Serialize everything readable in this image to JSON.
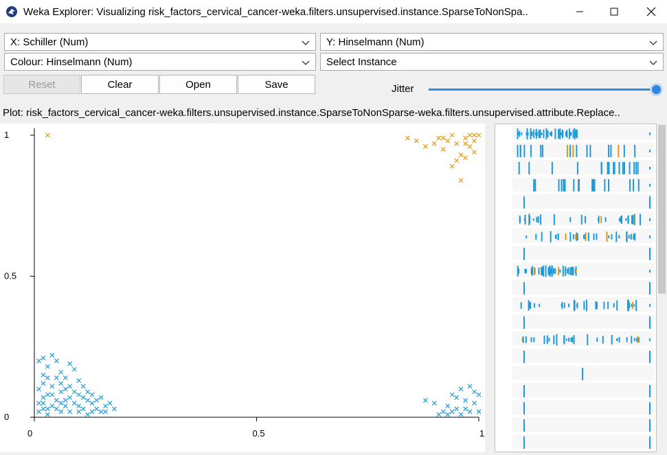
{
  "window": {
    "title": "Weka Explorer: Visualizing risk_factors_cervical_cancer-weka.filters.unsupervised.instance.SparseToNonSpa..",
    "minimize_icon": "minimize-icon",
    "maximize_icon": "maximize-icon",
    "close_icon": "close-icon"
  },
  "controls": {
    "x_axis": "X: Schiller (Num)",
    "y_axis": "Y: Hinselmann (Num)",
    "colour": "Colour: Hinselmann (Num)",
    "select_instance": "Select Instance",
    "reset_label": "Reset",
    "clear_label": "Clear",
    "open_label": "Open",
    "save_label": "Save",
    "jitter_label": "Jitter",
    "jitter_value": 1.0
  },
  "plot": {
    "title": "Plot: risk_factors_cervical_cancer-weka.filters.unsupervised.instance.SparseToNonSparse-weka.filters.unsupervised.attribute.Replace..",
    "colors": {
      "class0": "#1e9ad8",
      "class1": "#e8960c"
    }
  },
  "chart_data": {
    "type": "scatter",
    "xlabel": "",
    "ylabel": "",
    "xlim": [
      0,
      1
    ],
    "ylim": [
      0,
      1
    ],
    "x_ticks": [
      "0",
      "0.5",
      "1"
    ],
    "y_ticks": [
      "0",
      "0.5",
      "1"
    ],
    "marker": "x",
    "series": [
      {
        "color": "#1e9ad8",
        "points": [
          [
            0.01,
            0.02
          ],
          [
            0.02,
            0.05
          ],
          [
            0.03,
            0.01
          ],
          [
            0.04,
            0.08
          ],
          [
            0.05,
            0.03
          ],
          [
            0.06,
            0.12
          ],
          [
            0.07,
            0.06
          ],
          [
            0.08,
            0.02
          ],
          [
            0.09,
            0.09
          ],
          [
            0.1,
            0.04
          ],
          [
            0.11,
            0.07
          ],
          [
            0.12,
            0.01
          ],
          [
            0.13,
            0.05
          ],
          [
            0.14,
            0.03
          ],
          [
            0.15,
            0.02
          ],
          [
            0.02,
            0.15
          ],
          [
            0.03,
            0.18
          ],
          [
            0.05,
            0.2
          ],
          [
            0.06,
            0.16
          ],
          [
            0.08,
            0.19
          ],
          [
            0.04,
            0.22
          ],
          [
            0.01,
            0.1
          ],
          [
            0.02,
            0.12
          ],
          [
            0.03,
            0.08
          ],
          [
            0.07,
            0.14
          ],
          [
            0.09,
            0.17
          ],
          [
            0.1,
            0.13
          ],
          [
            0.11,
            0.11
          ],
          [
            0.12,
            0.09
          ],
          [
            0.13,
            0.08
          ],
          [
            0.14,
            0.06
          ],
          [
            0.16,
            0.04
          ],
          [
            0.18,
            0.03
          ],
          [
            0.17,
            0.05
          ],
          [
            0.01,
            0.2
          ],
          [
            0.02,
            0.21
          ],
          [
            0.05,
            0.14
          ],
          [
            0.06,
            0.09
          ],
          [
            0.08,
            0.07
          ],
          [
            0.09,
            0.05
          ],
          [
            0.1,
            0.02
          ],
          [
            0.04,
            0.04
          ],
          [
            0.03,
            0.03
          ],
          [
            0.02,
            0.07
          ],
          [
            0.07,
            0.1
          ],
          [
            0.11,
            0.03
          ],
          [
            0.12,
            0.06
          ],
          [
            0.13,
            0.02
          ],
          [
            0.06,
            0.02
          ],
          [
            0.05,
            0.06
          ],
          [
            0.01,
            0.05
          ],
          [
            0.02,
            0.03
          ],
          [
            0.04,
            0.11
          ],
          [
            0.06,
            0.05
          ],
          [
            0.08,
            0.11
          ],
          [
            0.15,
            0.07
          ],
          [
            0.16,
            0.02
          ],
          [
            0.1,
            0.08
          ],
          [
            0.03,
            0.14
          ],
          [
            0.07,
            0.04
          ],
          [
            0.88,
            0.06
          ],
          [
            0.9,
            0.05
          ],
          [
            0.92,
            0.02
          ],
          [
            0.93,
            0.04
          ],
          [
            0.94,
            0.08
          ],
          [
            0.95,
            0.03
          ],
          [
            0.96,
            0.1
          ],
          [
            0.97,
            0.06
          ],
          [
            0.98,
            0.02
          ],
          [
            0.99,
            0.09
          ],
          [
            0.95,
            0.07
          ],
          [
            0.96,
            0.01
          ],
          [
            0.97,
            0.03
          ],
          [
            0.98,
            0.11
          ],
          [
            0.99,
            0.05
          ],
          [
            1.0,
            0.08
          ],
          [
            0.91,
            0.01
          ],
          [
            0.94,
            0.02
          ],
          [
            0.93,
            0.01
          ],
          [
            1.0,
            0.02
          ]
        ]
      },
      {
        "color": "#e8960c",
        "points": [
          [
            0.03,
            1.0
          ],
          [
            0.84,
            0.99
          ],
          [
            0.86,
            0.98
          ],
          [
            0.88,
            0.96
          ],
          [
            0.9,
            0.97
          ],
          [
            0.91,
            0.99
          ],
          [
            0.92,
            0.95
          ],
          [
            0.93,
            0.98
          ],
          [
            0.94,
            1.0
          ],
          [
            0.95,
            0.97
          ],
          [
            0.96,
            0.93
          ],
          [
            0.97,
            0.99
          ],
          [
            0.98,
            0.96
          ],
          [
            0.99,
            0.98
          ],
          [
            1.0,
            1.0
          ],
          [
            0.95,
            0.91
          ],
          [
            0.97,
            0.92
          ],
          [
            0.99,
            0.94
          ],
          [
            0.96,
            0.84
          ],
          [
            0.94,
            0.89
          ],
          [
            0.98,
            1.0
          ],
          [
            0.97,
            0.97
          ],
          [
            0.92,
            0.99
          ],
          [
            0.99,
            1.0
          ]
        ]
      }
    ]
  }
}
